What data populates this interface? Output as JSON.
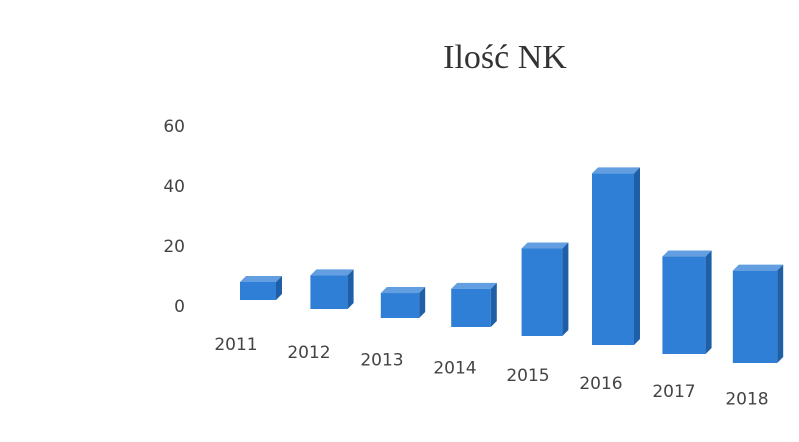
{
  "chart_data": {
    "type": "bar3d",
    "title": "Ilość NK",
    "categories": [
      "2011",
      "2012",
      "2013",
      "2014",
      "2015",
      "2016",
      "2017",
      "2018"
    ],
    "values": [
      6,
      11,
      8,
      12,
      27,
      52,
      29,
      27
    ],
    "color": "#2f7fd6",
    "ylim": [
      0,
      60
    ],
    "yticks": [
      0,
      20,
      40,
      60
    ],
    "grid": false
  }
}
